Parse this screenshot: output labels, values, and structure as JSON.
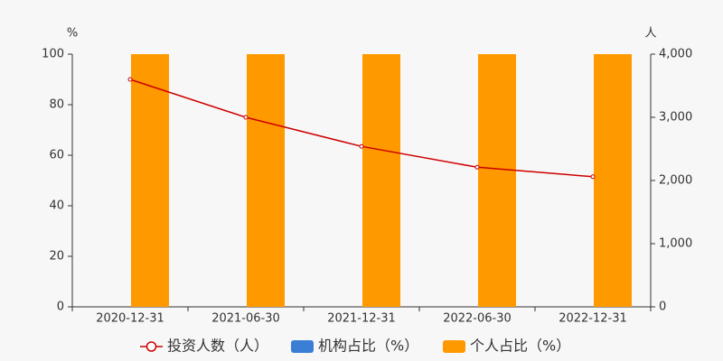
{
  "chart_data": {
    "type": "bar",
    "y_label": "%",
    "y2_label": "人",
    "categories": [
      "2020-12-31",
      "2021-06-30",
      "2021-12-31",
      "2022-06-30",
      "2022-12-31"
    ],
    "series": [
      {
        "name": "投资人数（人）",
        "type": "line",
        "axis": "y2",
        "color": "#cc0000",
        "values": [
          3600,
          3000,
          2540,
          2210,
          2060
        ]
      },
      {
        "name": "机构占比（%）",
        "type": "bar",
        "color": "#3a7fd5",
        "values": [
          0,
          0,
          0,
          0,
          0
        ]
      },
      {
        "name": "个人占比（%）",
        "type": "bar",
        "color": "#ff9900",
        "values": [
          100,
          100,
          100,
          100,
          100
        ]
      }
    ],
    "ylim": [
      0,
      100
    ],
    "yticks": [
      0,
      20,
      40,
      60,
      80,
      100
    ],
    "y2lim": [
      0,
      4000
    ],
    "y2ticks": [
      0,
      {
        "value": 1000,
        "label": "1,000"
      },
      {
        "value": 2000,
        "label": "2,000"
      },
      {
        "value": 3000,
        "label": "3,000"
      },
      {
        "value": 4000,
        "label": "4,000"
      }
    ],
    "grid": false,
    "legend": "bottom"
  }
}
